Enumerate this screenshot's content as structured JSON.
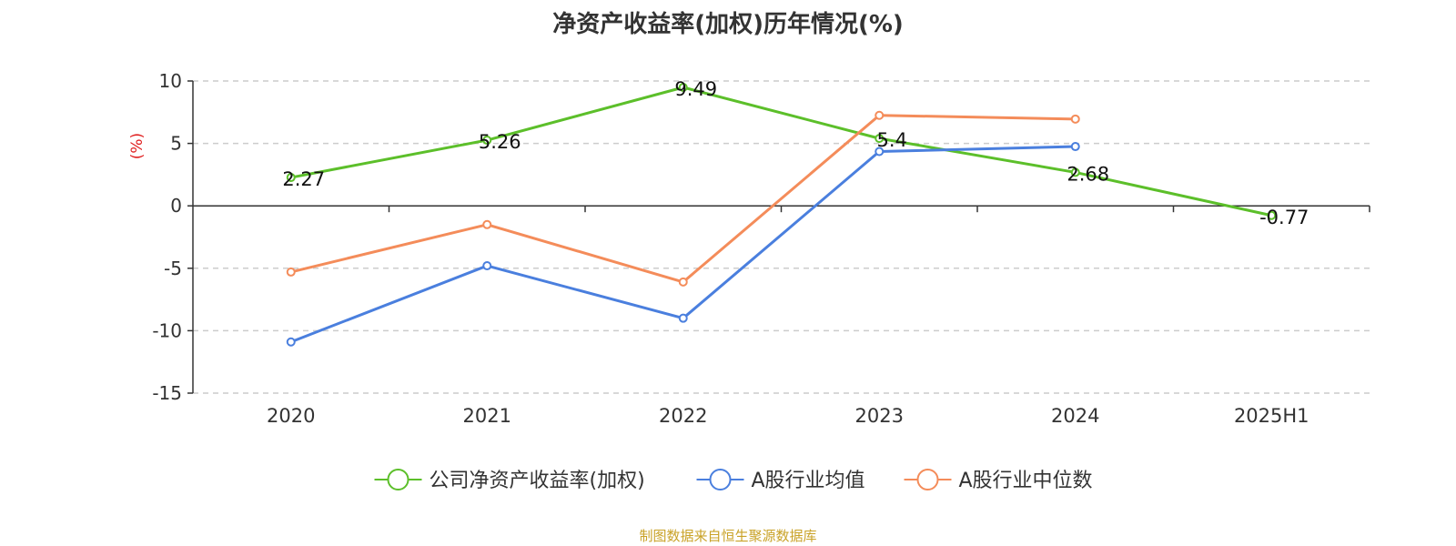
{
  "colors": {
    "company": "#5cbf2a",
    "industry_avg": "#4a7fde",
    "industry_median": "#f48c5a",
    "axis": "#333333",
    "grid": "#cccccc",
    "ylabel": "#e02020",
    "source": "#c9a227"
  },
  "source_note": "制图数据来自恒生聚源数据库",
  "chart_data": {
    "type": "line",
    "title": "净资产收益率(加权)历年情况(%)",
    "ylabel": "(%)",
    "xlabel": "",
    "categories": [
      "2020",
      "2021",
      "2022",
      "2023",
      "2024",
      "2025H1"
    ],
    "ylim": [
      -15,
      10
    ],
    "yticks": [
      10,
      5,
      0,
      -5,
      -10,
      -15
    ],
    "grid": true,
    "legend_position": "bottom-center",
    "series": [
      {
        "name": "公司净资产收益率(加权)",
        "values": [
          2.27,
          5.26,
          9.49,
          5.4,
          2.68,
          -0.77
        ],
        "labels": [
          "2.27",
          "5.26",
          "9.49",
          "5.4",
          "2.68",
          "-0.77"
        ],
        "color": "#5cbf2a"
      },
      {
        "name": "A股行业均值",
        "values": [
          -10.9,
          -4.8,
          -9.0,
          4.35,
          4.75,
          null
        ],
        "color": "#4a7fde"
      },
      {
        "name": "A股行业中位数",
        "values": [
          -5.3,
          -1.5,
          -6.1,
          7.25,
          6.95,
          null
        ],
        "color": "#f48c5a"
      }
    ]
  }
}
